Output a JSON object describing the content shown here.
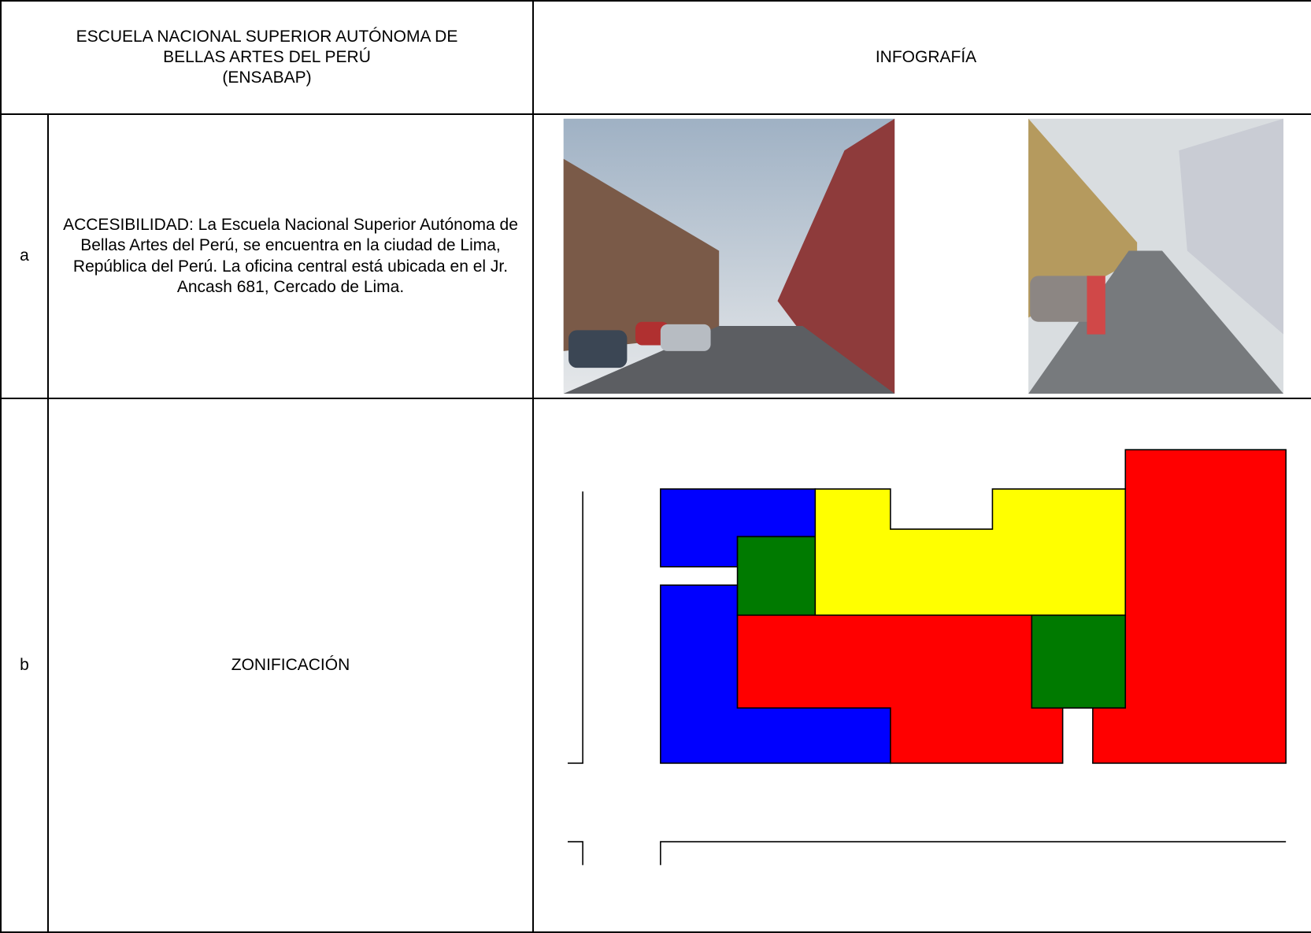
{
  "header": {
    "left_title_lines": [
      "ESCUELA NACIONAL SUPERIOR AUTÓNOMA DE",
      "BELLAS ARTES DEL PERÚ",
      "(ENSABAP)"
    ],
    "right_title": "INFOGRAFÍA"
  },
  "rows": [
    {
      "letter": "a",
      "text": "ACCESIBILIDAD: La Escuela Nacional Superior Autónoma de Bellas Artes del Perú, se encuentra en la ciudad de Lima, República del Perú. La oficina central está ubicada en el Jr. Ancash 681, Cercado de Lima."
    },
    {
      "letter": "b",
      "text": "ZONIFICACIÓN"
    }
  ]
}
